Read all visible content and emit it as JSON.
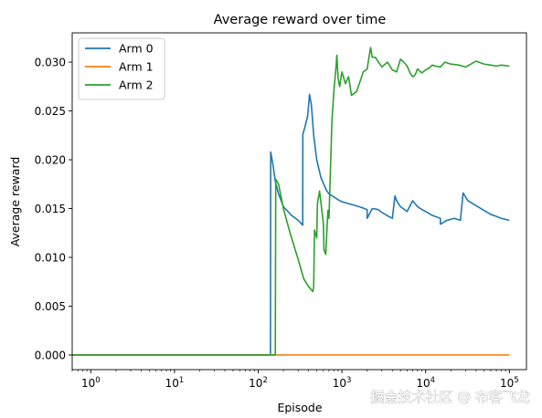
{
  "chart_data": {
    "type": "line",
    "title": "Average reward over time",
    "xlabel": "Episode",
    "ylabel": "Average reward",
    "xscale": "log",
    "xlim": [
      0.6,
      160000
    ],
    "ylim": [
      -0.0015,
      0.033
    ],
    "x_ticks": [
      {
        "value": 1,
        "base": "10",
        "exp": "0"
      },
      {
        "value": 10,
        "base": "10",
        "exp": "1"
      },
      {
        "value": 100,
        "base": "10",
        "exp": "2"
      },
      {
        "value": 1000,
        "base": "10",
        "exp": "3"
      },
      {
        "value": 10000,
        "base": "10",
        "exp": "4"
      },
      {
        "value": 100000,
        "base": "10",
        "exp": "5"
      }
    ],
    "y_ticks": [
      {
        "value": 0.0,
        "label": "0.000"
      },
      {
        "value": 0.005,
        "label": "0.005"
      },
      {
        "value": 0.01,
        "label": "0.010"
      },
      {
        "value": 0.015,
        "label": "0.015"
      },
      {
        "value": 0.02,
        "label": "0.020"
      },
      {
        "value": 0.025,
        "label": "0.025"
      },
      {
        "value": 0.03,
        "label": "0.030"
      }
    ],
    "grid": false,
    "legend_position": "top-left",
    "series": [
      {
        "name": "Arm 0",
        "color": "#1f77b4",
        "x": [
          0.6,
          140,
          141,
          150,
          160,
          175,
          200,
          250,
          300,
          340,
          341,
          360,
          390,
          410,
          420,
          430,
          440,
          460,
          500,
          560,
          650,
          700,
          800,
          900,
          1000,
          1200,
          1600,
          2000,
          2001,
          2300,
          2700,
          3000,
          3300,
          3600,
          4000,
          4300,
          4500,
          5000,
          6000,
          7000,
          8000,
          9000,
          10000,
          12000,
          15000,
          15001,
          18000,
          20000,
          22000,
          26000,
          28000,
          32000,
          40000,
          50000,
          60000,
          70000,
          80000,
          100000
        ],
        "y": [
          0,
          0,
          0.0208,
          0.0195,
          0.0178,
          0.0165,
          0.0152,
          0.0143,
          0.0138,
          0.0133,
          0.0226,
          0.0233,
          0.0245,
          0.0267,
          0.0262,
          0.0257,
          0.0247,
          0.0225,
          0.02,
          0.0182,
          0.0169,
          0.0165,
          0.0162,
          0.0159,
          0.0157,
          0.0155,
          0.0152,
          0.0149,
          0.014,
          0.015,
          0.0149,
          0.0146,
          0.0144,
          0.0142,
          0.014,
          0.0163,
          0.0158,
          0.0152,
          0.0147,
          0.0158,
          0.0152,
          0.0149,
          0.0147,
          0.0143,
          0.014,
          0.0134,
          0.0138,
          0.0139,
          0.014,
          0.0138,
          0.0166,
          0.0158,
          0.0153,
          0.0148,
          0.0144,
          0.0142,
          0.014,
          0.0138
        ]
      },
      {
        "name": "Arm 1",
        "color": "#ff7f0e",
        "x": [
          0.6,
          160,
          100000
        ],
        "y": [
          0,
          0,
          0
        ]
      },
      {
        "name": "Arm 2",
        "color": "#2ca02c",
        "x": [
          0.6,
          160,
          162,
          175,
          200,
          240,
          300,
          350,
          400,
          450,
          460,
          470,
          500,
          510,
          540,
          600,
          610,
          640,
          680,
          700,
          760,
          800,
          850,
          870,
          900,
          940,
          1000,
          1100,
          1200,
          1300,
          1500,
          1800,
          2000,
          2200,
          2300,
          2500,
          3000,
          3500,
          4000,
          4500,
          5000,
          5500,
          6000,
          6500,
          7000,
          7500,
          8000,
          9000,
          10000,
          11000,
          12000,
          13000,
          15000,
          17000,
          20000,
          25000,
          30000,
          40000,
          50000,
          60000,
          70000,
          80000,
          100000
        ],
        "y": [
          0,
          0,
          0.018,
          0.0175,
          0.015,
          0.0125,
          0.0098,
          0.0078,
          0.007,
          0.0065,
          0.007,
          0.0128,
          0.012,
          0.0155,
          0.0168,
          0.0135,
          0.0108,
          0.0103,
          0.0148,
          0.014,
          0.024,
          0.027,
          0.0295,
          0.0307,
          0.0283,
          0.0275,
          0.029,
          0.0278,
          0.0285,
          0.0266,
          0.027,
          0.029,
          0.0293,
          0.0315,
          0.0305,
          0.0305,
          0.0295,
          0.03,
          0.0292,
          0.029,
          0.0303,
          0.03,
          0.0296,
          0.0289,
          0.0285,
          0.0287,
          0.0293,
          0.0289,
          0.0292,
          0.0294,
          0.0297,
          0.0296,
          0.0295,
          0.03,
          0.0298,
          0.0297,
          0.0295,
          0.0301,
          0.0298,
          0.0297,
          0.0296,
          0.0297,
          0.0296
        ]
      }
    ]
  },
  "watermark": "掘金技术社区 @ 布客飞龙"
}
